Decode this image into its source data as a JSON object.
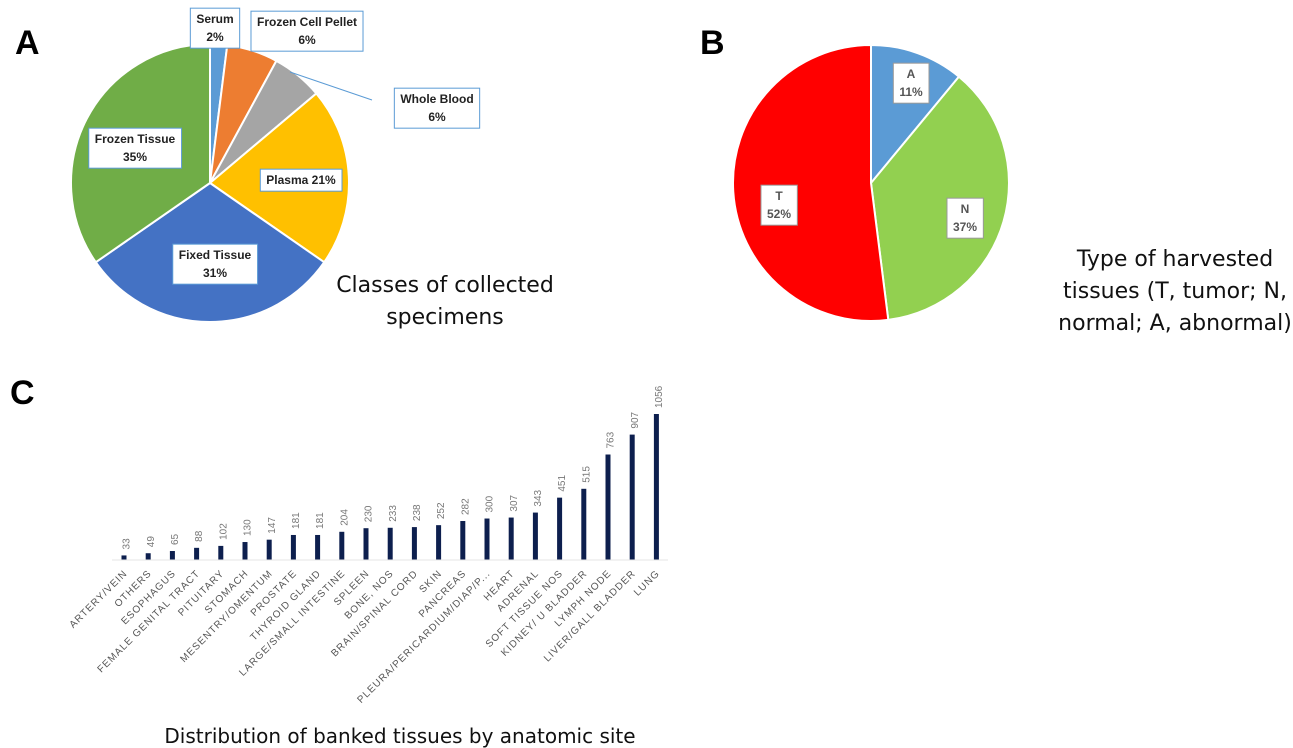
{
  "chart_data": [
    {
      "type": "pie",
      "panel": "A",
      "title": "Classes of collected specimens",
      "categories": [
        "Serum",
        "Frozen Cell Pellet",
        "Whole Blood",
        "Plasma",
        "Fixed Tissue",
        "Frozen Tissue"
      ],
      "values": [
        2,
        6,
        6,
        21,
        31,
        35
      ],
      "value_labels": [
        "2%",
        "6%",
        "6%",
        "21%",
        "31%",
        "35%"
      ],
      "colors": [
        "#5b9bd5",
        "#ed7d31",
        "#a5a5a5",
        "#ffc000",
        "#4472c4",
        "#70ad47"
      ]
    },
    {
      "type": "pie",
      "panel": "B",
      "title": "Type of harvested tissues (T, tumor; N, normal; A, abnormal)",
      "categories": [
        "A",
        "N",
        "T"
      ],
      "values": [
        11,
        37,
        52
      ],
      "value_labels": [
        "11%",
        "37%",
        "52%"
      ],
      "colors": [
        "#5b9bd5",
        "#92d050",
        "#ff0000"
      ]
    },
    {
      "type": "bar",
      "panel": "C",
      "title": "Distribution of banked tissues by anatomic site",
      "categories": [
        "ARTERY/VEIN",
        "OTHERS",
        "ESOPHAGUS",
        "FEMALE GENITAL TRACT",
        "PITUITARY",
        "STOMACH",
        "MESENTRY/OMENTUM",
        "PROSTATE",
        "THYROID GLAND",
        "LARGE/SMALL INTESTINE",
        "SPLEEN",
        "BONE, NOS",
        "BRAIN/SPINAL CORD",
        "SKIN",
        "PANCREAS",
        "PLEURA/PERICARDIUM/DIAP/P...",
        "HEART",
        "ADRENAL",
        "SOFT TISSUE NOS",
        "KIDNEY/ U BLADDER",
        "LYMPH NODE",
        "LIVER/GALL BLADDER",
        "LUNG"
      ],
      "values": [
        33,
        49,
        65,
        88,
        102,
        130,
        147,
        181,
        181,
        204,
        230,
        233,
        238,
        252,
        282,
        300,
        307,
        343,
        451,
        515,
        763,
        907,
        1056
      ],
      "color": "#0d1f4e"
    }
  ]
}
